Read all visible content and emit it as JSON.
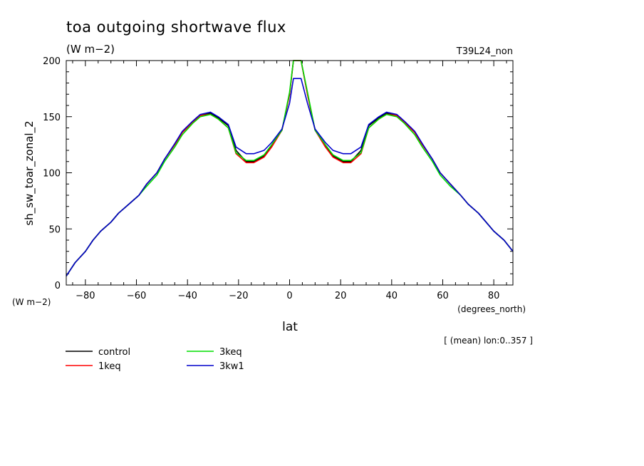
{
  "chart_data": {
    "type": "line",
    "title": "toa outgoing shortwave flux",
    "subtitle": "(W m−2)",
    "run_label": "T39L24_non",
    "xlabel": "lat",
    "x_units": "(degrees_north)",
    "ylabel": "sh_sw_toar_zonal_2",
    "y_units": "(W m−2)",
    "annotation": "[ (mean) lon:0..357 ]",
    "xlim": [
      -87.5,
      87.5
    ],
    "ylim": [
      0,
      200
    ],
    "x_ticks": [
      -80,
      -60,
      -40,
      -20,
      0,
      20,
      40,
      60,
      80
    ],
    "x_tick_labels": [
      "−80",
      "−60",
      "−40",
      "−20",
      "0",
      "20",
      "40",
      "60",
      "80"
    ],
    "y_ticks": [
      0,
      50,
      100,
      150,
      200
    ],
    "y_tick_labels": [
      "0",
      "50",
      "100",
      "150",
      "200"
    ],
    "grid": false,
    "legend_position": "bottom-left",
    "series": [
      {
        "name": "control",
        "color": "#000000",
        "points": [
          [
            -87.5,
            8
          ],
          [
            -84,
            20
          ],
          [
            -80,
            30
          ],
          [
            -77,
            40
          ],
          [
            -74,
            48
          ],
          [
            -70,
            56
          ],
          [
            -67,
            64
          ],
          [
            -63,
            72
          ],
          [
            -59,
            80
          ],
          [
            -56,
            90
          ],
          [
            -52,
            100
          ],
          [
            -49,
            112
          ],
          [
            -45,
            125
          ],
          [
            -42,
            136
          ],
          [
            -38,
            145
          ],
          [
            -35,
            151
          ],
          [
            -31,
            153
          ],
          [
            -28,
            149
          ],
          [
            -24,
            142
          ],
          [
            -21,
            120
          ],
          [
            -17,
            110
          ],
          [
            -14,
            110
          ],
          [
            -10,
            115
          ],
          [
            -7,
            124
          ],
          [
            -3,
            138
          ],
          [
            0,
            170
          ],
          [
            1.5,
            200
          ],
          [
            4.5,
            200
          ],
          [
            7,
            170
          ],
          [
            10,
            138
          ],
          [
            14,
            124
          ],
          [
            17,
            115
          ],
          [
            21,
            110
          ],
          [
            24,
            110
          ],
          [
            28,
            120
          ],
          [
            31,
            142
          ],
          [
            35,
            149
          ],
          [
            38,
            153
          ],
          [
            42,
            151
          ],
          [
            45,
            145
          ],
          [
            49,
            136
          ],
          [
            52,
            125
          ],
          [
            56,
            112
          ],
          [
            59,
            100
          ],
          [
            63,
            90
          ],
          [
            67,
            80
          ],
          [
            70,
            72
          ],
          [
            74,
            64
          ],
          [
            77,
            56
          ],
          [
            80,
            48
          ],
          [
            84,
            40
          ],
          [
            87.5,
            30
          ]
        ]
      },
      {
        "name": "1keq",
        "color": "#ff0000",
        "points": [
          [
            -87.5,
            8
          ],
          [
            -84,
            20
          ],
          [
            -80,
            30
          ],
          [
            -77,
            40
          ],
          [
            -74,
            48
          ],
          [
            -70,
            56
          ],
          [
            -67,
            64
          ],
          [
            -63,
            72
          ],
          [
            -59,
            80
          ],
          [
            -56,
            90
          ],
          [
            -52,
            100
          ],
          [
            -49,
            112
          ],
          [
            -45,
            125
          ],
          [
            -42,
            136
          ],
          [
            -38,
            145
          ],
          [
            -35,
            151
          ],
          [
            -31,
            152
          ],
          [
            -28,
            148
          ],
          [
            -24,
            140
          ],
          [
            -21,
            117
          ],
          [
            -17,
            109
          ],
          [
            -14,
            109
          ],
          [
            -10,
            114
          ],
          [
            -7,
            123
          ],
          [
            -3,
            138
          ],
          [
            0,
            170
          ],
          [
            1.5,
            200
          ],
          [
            4.5,
            200
          ],
          [
            7,
            170
          ],
          [
            10,
            138
          ],
          [
            14,
            123
          ],
          [
            17,
            114
          ],
          [
            21,
            109
          ],
          [
            24,
            109
          ],
          [
            28,
            117
          ],
          [
            31,
            140
          ],
          [
            35,
            148
          ],
          [
            38,
            152
          ],
          [
            42,
            151
          ],
          [
            45,
            145
          ],
          [
            49,
            136
          ],
          [
            52,
            125
          ],
          [
            56,
            112
          ],
          [
            59,
            100
          ],
          [
            63,
            90
          ],
          [
            67,
            80
          ],
          [
            70,
            72
          ],
          [
            74,
            64
          ],
          [
            77,
            56
          ],
          [
            80,
            48
          ],
          [
            84,
            40
          ],
          [
            87.5,
            30
          ]
        ]
      },
      {
        "name": "3keq",
        "color": "#00dd00",
        "points": [
          [
            -87.5,
            8
          ],
          [
            -84,
            20
          ],
          [
            -80,
            30
          ],
          [
            -77,
            40
          ],
          [
            -74,
            48
          ],
          [
            -70,
            56
          ],
          [
            -67,
            64
          ],
          [
            -63,
            72
          ],
          [
            -59,
            80
          ],
          [
            -56,
            88
          ],
          [
            -52,
            98
          ],
          [
            -49,
            110
          ],
          [
            -45,
            123
          ],
          [
            -42,
            134
          ],
          [
            -38,
            144
          ],
          [
            -35,
            150
          ],
          [
            -31,
            152
          ],
          [
            -28,
            148
          ],
          [
            -24,
            140
          ],
          [
            -21,
            118
          ],
          [
            -17,
            111
          ],
          [
            -14,
            111
          ],
          [
            -10,
            116
          ],
          [
            -7,
            125
          ],
          [
            -3,
            138
          ],
          [
            0,
            172
          ],
          [
            1.5,
            200
          ],
          [
            4.5,
            200
          ],
          [
            7,
            172
          ],
          [
            10,
            138
          ],
          [
            14,
            125
          ],
          [
            17,
            116
          ],
          [
            21,
            111
          ],
          [
            24,
            111
          ],
          [
            28,
            118
          ],
          [
            31,
            140
          ],
          [
            35,
            148
          ],
          [
            38,
            152
          ],
          [
            42,
            150
          ],
          [
            45,
            144
          ],
          [
            49,
            134
          ],
          [
            52,
            123
          ],
          [
            56,
            110
          ],
          [
            59,
            98
          ],
          [
            63,
            88
          ],
          [
            67,
            80
          ],
          [
            70,
            72
          ],
          [
            74,
            64
          ],
          [
            77,
            56
          ],
          [
            80,
            48
          ],
          [
            84,
            40
          ],
          [
            87.5,
            30
          ]
        ]
      },
      {
        "name": "3kw1",
        "color": "#0000cc",
        "points": [
          [
            -87.5,
            8
          ],
          [
            -84,
            20
          ],
          [
            -80,
            30
          ],
          [
            -77,
            40
          ],
          [
            -74,
            48
          ],
          [
            -70,
            56
          ],
          [
            -67,
            64
          ],
          [
            -63,
            72
          ],
          [
            -59,
            80
          ],
          [
            -56,
            90
          ],
          [
            -52,
            100
          ],
          [
            -49,
            112
          ],
          [
            -45,
            126
          ],
          [
            -42,
            137
          ],
          [
            -38,
            146
          ],
          [
            -35,
            152
          ],
          [
            -31,
            154
          ],
          [
            -28,
            150
          ],
          [
            -24,
            143
          ],
          [
            -21,
            123
          ],
          [
            -17,
            117
          ],
          [
            -14,
            117
          ],
          [
            -10,
            120
          ],
          [
            -7,
            127
          ],
          [
            -3,
            139
          ],
          [
            0,
            162
          ],
          [
            1.5,
            184
          ],
          [
            4.5,
            184
          ],
          [
            7,
            162
          ],
          [
            10,
            139
          ],
          [
            14,
            127
          ],
          [
            17,
            120
          ],
          [
            21,
            117
          ],
          [
            24,
            117
          ],
          [
            28,
            123
          ],
          [
            31,
            143
          ],
          [
            35,
            150
          ],
          [
            38,
            154
          ],
          [
            42,
            152
          ],
          [
            45,
            146
          ],
          [
            49,
            137
          ],
          [
            52,
            126
          ],
          [
            56,
            112
          ],
          [
            59,
            100
          ],
          [
            63,
            90
          ],
          [
            67,
            80
          ],
          [
            70,
            72
          ],
          [
            74,
            64
          ],
          [
            77,
            56
          ],
          [
            80,
            48
          ],
          [
            84,
            40
          ],
          [
            87.5,
            30
          ]
        ]
      }
    ]
  }
}
